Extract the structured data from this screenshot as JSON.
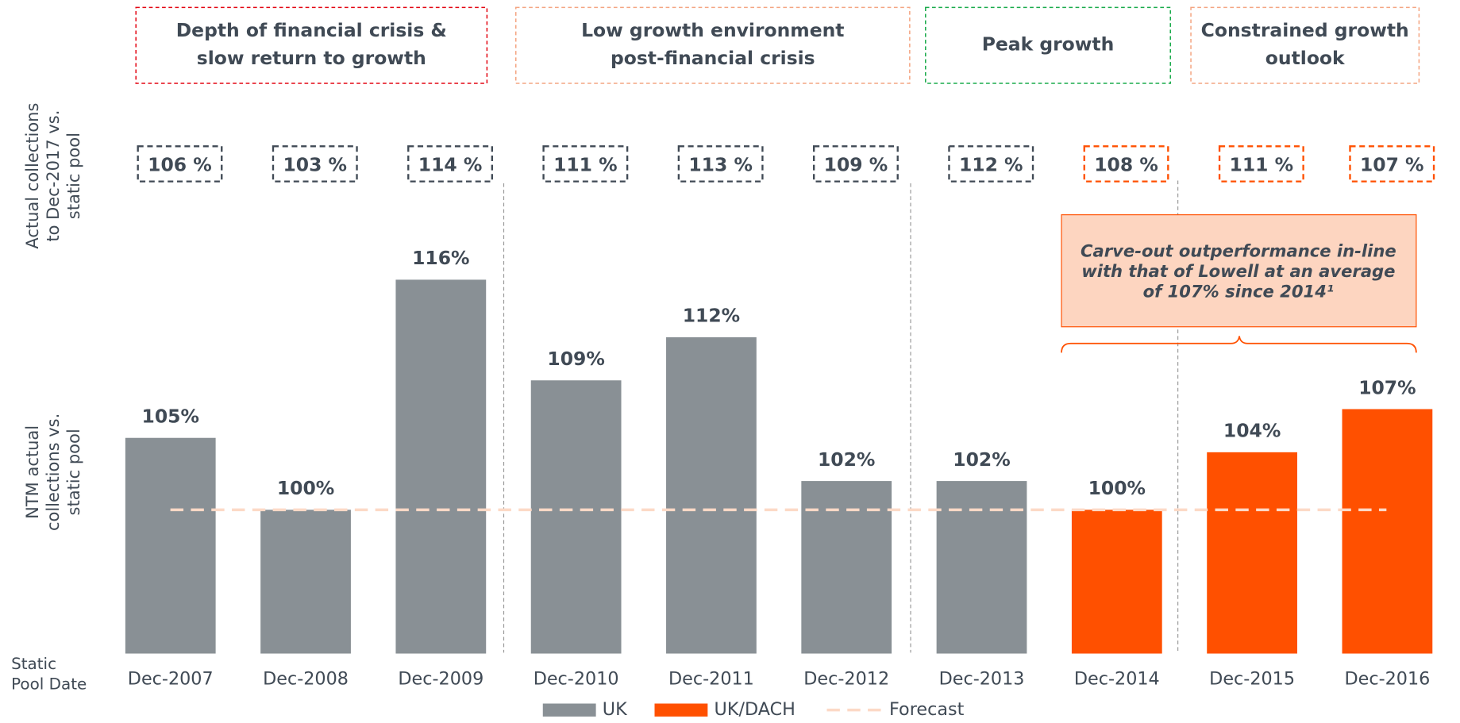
{
  "chart_data": {
    "type": "bar",
    "categories": [
      "Dec-2007",
      "Dec-2008",
      "Dec-2009",
      "Dec-2010",
      "Dec-2011",
      "Dec-2012",
      "Dec-2013",
      "Dec-2014",
      "Dec-2015",
      "Dec-2016"
    ],
    "x_axis_label": [
      "Static",
      "Pool Date"
    ],
    "y_axis_label": [
      "NTM actual",
      "collections vs.",
      "static pool"
    ],
    "ylim": [
      90,
      120
    ],
    "series": [
      {
        "name": "UK",
        "color": "#899095",
        "values": [
          105,
          100,
          116,
          109,
          112,
          102,
          102,
          null,
          null,
          null
        ],
        "value_labels": [
          "105%",
          "100%",
          "116%",
          "109%",
          "112%",
          "102%",
          "102%",
          null,
          null,
          null
        ]
      },
      {
        "name": "UK/DACH",
        "color": "#ff5000",
        "values": [
          null,
          null,
          null,
          null,
          null,
          null,
          null,
          100,
          104,
          107
        ],
        "value_labels": [
          null,
          null,
          null,
          null,
          null,
          null,
          null,
          "100%",
          "104%",
          "107%"
        ]
      }
    ],
    "reference_line": {
      "name": "Forecast",
      "value": 100,
      "color": "#fcd9c6"
    },
    "collections_to_date": {
      "axis_label": [
        "Actual collections",
        "to Dec-2017 vs.",
        "static pool"
      ],
      "values": [
        106,
        103,
        114,
        111,
        113,
        109,
        112,
        108,
        111,
        107
      ],
      "value_labels": [
        "106 %",
        "103 %",
        "114 %",
        "111 %",
        "113 %",
        "109 %",
        "112 %",
        "108 %",
        "111 %",
        "107 %"
      ],
      "colors": [
        "#404a55",
        "#404a55",
        "#404a55",
        "#404a55",
        "#404a55",
        "#404a55",
        "#404a55",
        "#ff5000",
        "#ff5000",
        "#ff5000"
      ]
    },
    "phases": [
      {
        "label": [
          "Depth of financial crisis &",
          "slow return to growth"
        ],
        "color": "#e30613"
      },
      {
        "label": [
          "Low growth environment",
          "post-financial crisis"
        ],
        "color": "#f4a582"
      },
      {
        "label": [
          "Peak growth"
        ],
        "color": "#1aab4b"
      },
      {
        "label": [
          "Constrained growth",
          "outlook"
        ],
        "color": "#f4a582"
      }
    ],
    "annotation": [
      "Carve-out outperformance in-line",
      "with that of Lowell at an average",
      "of 107% since 2014¹"
    ],
    "legend": true
  }
}
